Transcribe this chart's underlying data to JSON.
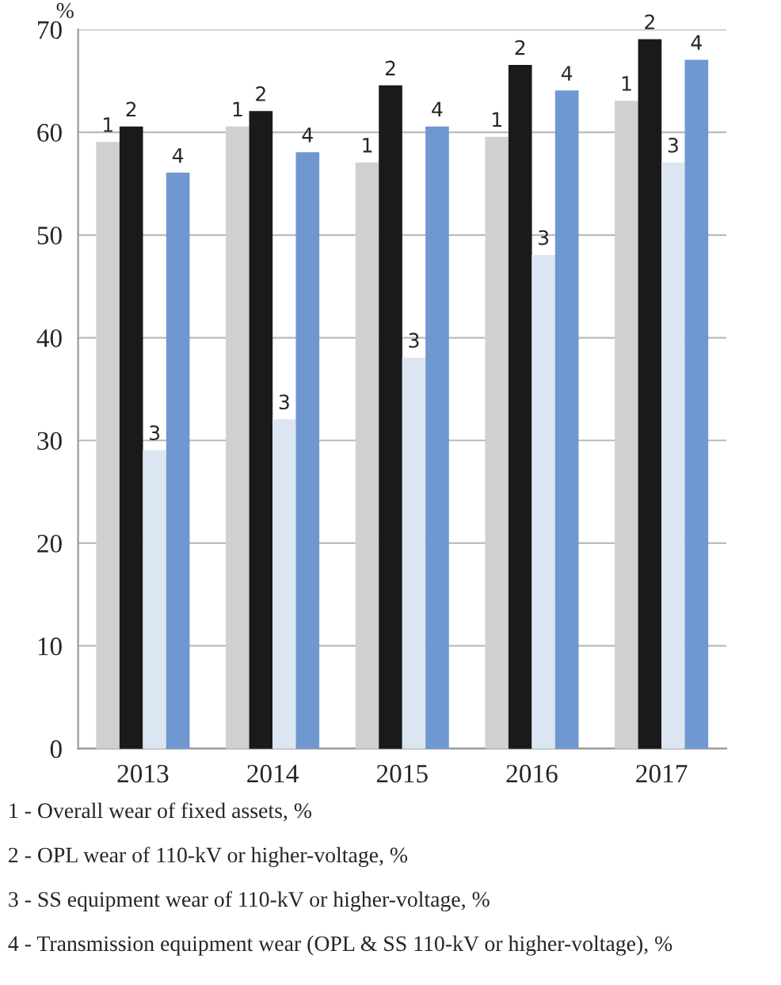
{
  "chart_data": {
    "type": "bar",
    "ylabel": "%",
    "categories": [
      "2013",
      "2014",
      "2015",
      "2016",
      "2017"
    ],
    "series": [
      {
        "name": "1",
        "color": "#d0d0d0",
        "values": [
          59,
          60.5,
          57,
          59.5,
          63
        ]
      },
      {
        "name": "2",
        "color": "#1a1a1a",
        "values": [
          60.5,
          62,
          64.5,
          66.5,
          69
        ]
      },
      {
        "name": "3",
        "color": "#dce6f2",
        "values": [
          29,
          32,
          38,
          48,
          57
        ]
      },
      {
        "name": "4",
        "color": "#6f98d0",
        "values": [
          56,
          58,
          60.5,
          64,
          67
        ]
      }
    ],
    "ylim": [
      0,
      70
    ],
    "yticks": [
      0,
      10,
      20,
      30,
      40,
      50,
      60,
      70
    ],
    "grid": "y",
    "legend": false,
    "annotations": [
      "1 - Overall wear of fixed assets, %",
      "2 - OPL wear of 110-kV or higher-voltage, %",
      "3 - SS equipment wear of 110-kV or higher-voltage, %",
      "4 - Transmission equipment wear (OPL & SS 110-kV or higher-voltage), %"
    ]
  }
}
